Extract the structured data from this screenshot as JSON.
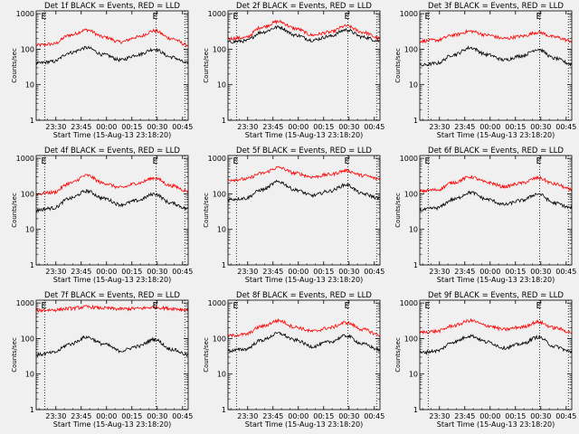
{
  "style": {
    "background": "#f0f0f0",
    "axis_color": "#000000",
    "events_color": "#000000",
    "lld_color": "#ff0000"
  },
  "shared": {
    "ylabel": "Counts/sec",
    "xlabel": "Start Time (15-Aug-13 23:18:20)",
    "x_ticks": [
      "23:30",
      "23:45",
      "00:00",
      "00:15",
      "00:30",
      "00:45"
    ],
    "y_ticks": [
      "1",
      "10",
      "100",
      "1000"
    ],
    "marker": "E",
    "y_scale": "log",
    "ylim": [
      1,
      1200
    ],
    "x_range_minutes": [
      0,
      90
    ],
    "x_tick_minutes": [
      11.67,
      26.67,
      41.67,
      56.67,
      71.67,
      86.67
    ],
    "vlines_minutes": [
      5,
      71,
      88
    ]
  },
  "chart_data": [
    {
      "type": "line",
      "title": "Det 1f BLACK = Events, RED = LLD",
      "ylabel": "Counts/sec",
      "xlabel": "Start Time (15-Aug-13 23:18:20)",
      "x": [
        0,
        10,
        20,
        30,
        40,
        50,
        60,
        70,
        80,
        90
      ],
      "series": [
        {
          "name": "LLD",
          "values": [
            130,
            140,
            250,
            350,
            220,
            160,
            220,
            330,
            200,
            130
          ]
        },
        {
          "name": "Events",
          "values": [
            40,
            45,
            80,
            110,
            70,
            50,
            70,
            100,
            60,
            40
          ]
        }
      ]
    },
    {
      "type": "line",
      "title": "Det 2f BLACK = Events, RED = LLD",
      "ylabel": "Counts/sec",
      "xlabel": "Start Time (15-Aug-13 23:18:20)",
      "x": [
        0,
        10,
        20,
        30,
        40,
        50,
        60,
        70,
        80,
        90
      ],
      "series": [
        {
          "name": "LLD",
          "values": [
            200,
            210,
            420,
            600,
            380,
            250,
            300,
            450,
            300,
            200
          ]
        },
        {
          "name": "Events",
          "values": [
            160,
            170,
            300,
            420,
            250,
            180,
            230,
            350,
            220,
            170
          ]
        }
      ]
    },
    {
      "type": "line",
      "title": "Det 3f BLACK = Events, RED = LLD",
      "ylabel": "Counts/sec",
      "xlabel": "Start Time (15-Aug-13 23:18:20)",
      "x": [
        0,
        10,
        20,
        30,
        40,
        50,
        60,
        70,
        80,
        90
      ],
      "series": [
        {
          "name": "LLD",
          "values": [
            170,
            180,
            250,
            320,
            250,
            200,
            230,
            300,
            220,
            170
          ]
        },
        {
          "name": "Events",
          "values": [
            35,
            40,
            70,
            110,
            70,
            50,
            65,
            100,
            55,
            38
          ]
        }
      ]
    },
    {
      "type": "line",
      "title": "Det 4f BLACK = Events, RED = LLD",
      "ylabel": "Counts/sec",
      "xlabel": "Start Time (15-Aug-13 23:18:20)",
      "x": [
        0,
        10,
        20,
        30,
        40,
        50,
        60,
        70,
        80,
        90
      ],
      "series": [
        {
          "name": "LLD",
          "values": [
            100,
            110,
            200,
            330,
            200,
            150,
            200,
            280,
            170,
            120
          ]
        },
        {
          "name": "Events",
          "values": [
            35,
            40,
            75,
            120,
            75,
            50,
            65,
            100,
            55,
            38
          ]
        }
      ]
    },
    {
      "type": "line",
      "title": "Det 5f BLACK = Events, RED = LLD",
      "ylabel": "Counts/sec",
      "xlabel": "Start Time (15-Aug-13 23:18:20)",
      "x": [
        0,
        10,
        20,
        30,
        40,
        50,
        60,
        70,
        80,
        90
      ],
      "series": [
        {
          "name": "LLD",
          "values": [
            250,
            260,
            380,
            550,
            380,
            300,
            350,
            450,
            330,
            260
          ]
        },
        {
          "name": "Events",
          "values": [
            70,
            75,
            130,
            220,
            130,
            90,
            120,
            180,
            100,
            75
          ]
        }
      ]
    },
    {
      "type": "line",
      "title": "Det 6f BLACK = Events, RED = LLD",
      "ylabel": "Counts/sec",
      "xlabel": "Start Time (15-Aug-13 23:18:20)",
      "x": [
        0,
        10,
        20,
        30,
        40,
        50,
        60,
        70,
        80,
        90
      ],
      "series": [
        {
          "name": "LLD",
          "values": [
            120,
            130,
            210,
            300,
            210,
            160,
            200,
            280,
            190,
            130
          ]
        },
        {
          "name": "Events",
          "values": [
            35,
            40,
            70,
            110,
            70,
            50,
            65,
            100,
            55,
            40
          ]
        }
      ]
    },
    {
      "type": "line",
      "title": "Det 7f BLACK = Events, RED = LLD",
      "ylabel": "Counts/sec",
      "xlabel": "Start Time (15-Aug-13 23:18:20)",
      "x": [
        0,
        10,
        20,
        30,
        40,
        50,
        60,
        70,
        80,
        90
      ],
      "series": [
        {
          "name": "LLD",
          "values": [
            620,
            640,
            700,
            780,
            720,
            680,
            700,
            760,
            700,
            640
          ]
        },
        {
          "name": "Events",
          "values": [
            35,
            40,
            70,
            110,
            70,
            45,
            60,
            95,
            50,
            35
          ]
        }
      ]
    },
    {
      "type": "line",
      "title": "Det 8f BLACK = Events, RED = LLD",
      "ylabel": "Counts/sec",
      "xlabel": "Start Time (15-Aug-13 23:18:20)",
      "x": [
        0,
        10,
        20,
        30,
        40,
        50,
        60,
        70,
        80,
        90
      ],
      "series": [
        {
          "name": "LLD",
          "values": [
            120,
            130,
            220,
            320,
            210,
            160,
            200,
            280,
            180,
            125
          ]
        },
        {
          "name": "Events",
          "values": [
            45,
            50,
            90,
            140,
            90,
            60,
            80,
            120,
            70,
            48
          ]
        }
      ]
    },
    {
      "type": "line",
      "title": "Det 9f BLACK = Events, RED = LLD",
      "ylabel": "Counts/sec",
      "xlabel": "Start Time (15-Aug-13 23:18:20)",
      "x": [
        0,
        10,
        20,
        30,
        40,
        50,
        60,
        70,
        80,
        90
      ],
      "series": [
        {
          "name": "LLD",
          "values": [
            150,
            160,
            230,
            320,
            230,
            180,
            210,
            290,
            200,
            150
          ]
        },
        {
          "name": "Events",
          "values": [
            40,
            45,
            80,
            120,
            80,
            55,
            70,
            110,
            60,
            42
          ]
        }
      ]
    }
  ]
}
